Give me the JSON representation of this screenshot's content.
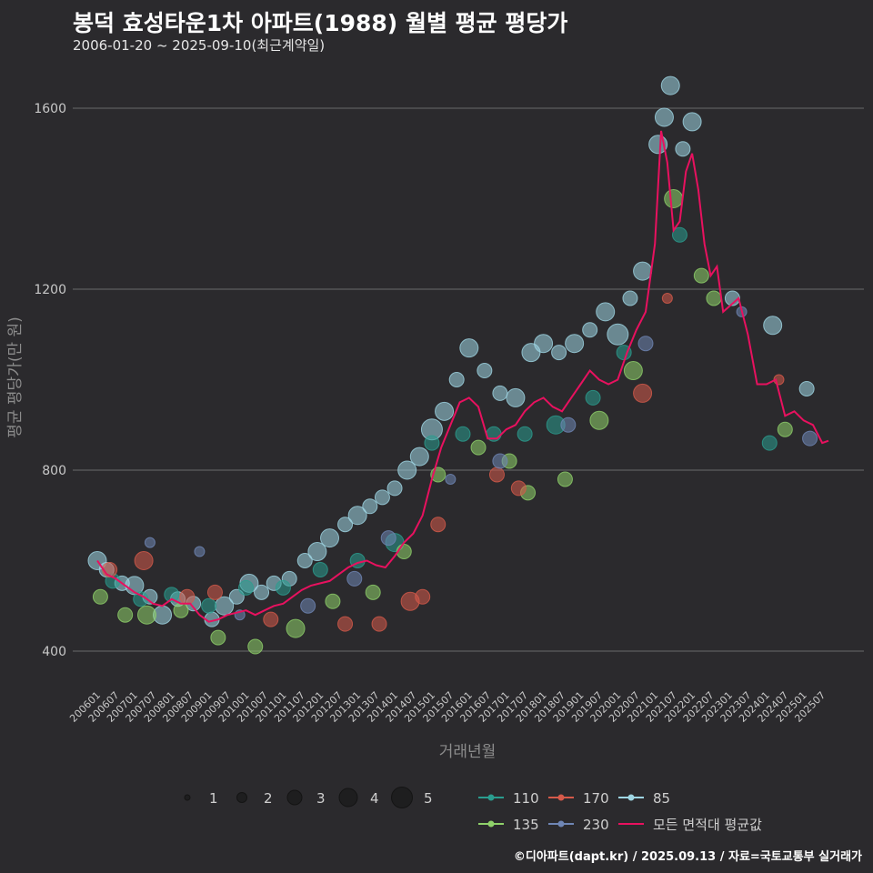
{
  "header": {
    "title": "봉덕 효성타운1차 아파트(1988) 월별 평균 평당가",
    "subtitle": "2006-01-20 ~ 2025-09-10(최근계약일)"
  },
  "footer": {
    "credit": "©디아파트(dapt.kr) / 2025.09.13 / 자료=국토교통부 실거래가"
  },
  "colors": {
    "background": "#2b2a2d",
    "grid": "#6a6a6a",
    "average_line": "#e8115f",
    "series": {
      "110": "#2a9d8f",
      "135": "#8fd16a",
      "170": "#d65a4a",
      "230": "#6f86b5",
      "85": "#9fd6e3"
    }
  },
  "chart_data": {
    "type": "scatter",
    "title": "봉덕 효성타운1차 아파트(1988) 월별 평균 평당가",
    "subtitle": "2006-01-20 ~ 2025-09-10(최근계약일)",
    "xlabel": "거래년월",
    "ylabel": "평균 평당가(만 원)",
    "ylim": [
      300,
      1720
    ],
    "yticks": [
      400,
      800,
      1200,
      1600
    ],
    "grid": true,
    "xrange": [
      "2006-01",
      "2025-09"
    ],
    "xticks": [
      "200601",
      "200607",
      "200701",
      "200707",
      "200801",
      "200807",
      "200901",
      "200907",
      "201001",
      "201007",
      "201101",
      "201107",
      "201201",
      "201207",
      "201301",
      "201307",
      "201401",
      "201407",
      "201501",
      "201507",
      "201601",
      "201607",
      "201701",
      "201707",
      "201801",
      "201807",
      "201901",
      "201907",
      "202001",
      "202007",
      "202101",
      "202107",
      "202201",
      "202207",
      "202301",
      "202307",
      "202401",
      "202407",
      "202501",
      "202507"
    ],
    "size_legend": {
      "title": "",
      "values": [
        "1",
        "2",
        "3",
        "4",
        "5"
      ]
    },
    "series_legend": [
      "110",
      "170",
      "85",
      "135",
      "230",
      "모든 면적대 평균값"
    ],
    "average_line": {
      "name": "모든 면적대 평균값",
      "points": [
        [
          "2006-01",
          600
        ],
        [
          "2006-04",
          570
        ],
        [
          "2006-07",
          560
        ],
        [
          "2006-10",
          545
        ],
        [
          "2007-01",
          530
        ],
        [
          "2007-04",
          520
        ],
        [
          "2007-07",
          505
        ],
        [
          "2007-10",
          500
        ],
        [
          "2008-01",
          515
        ],
        [
          "2008-04",
          505
        ],
        [
          "2008-07",
          505
        ],
        [
          "2008-10",
          480
        ],
        [
          "2009-01",
          465
        ],
        [
          "2009-04",
          470
        ],
        [
          "2009-07",
          480
        ],
        [
          "2009-10",
          485
        ],
        [
          "2010-01",
          490
        ],
        [
          "2010-04",
          480
        ],
        [
          "2010-07",
          490
        ],
        [
          "2010-10",
          500
        ],
        [
          "2011-01",
          505
        ],
        [
          "2011-04",
          520
        ],
        [
          "2011-07",
          535
        ],
        [
          "2011-10",
          545
        ],
        [
          "2012-01",
          550
        ],
        [
          "2012-04",
          555
        ],
        [
          "2012-07",
          570
        ],
        [
          "2012-10",
          585
        ],
        [
          "2013-01",
          595
        ],
        [
          "2013-04",
          600
        ],
        [
          "2013-07",
          590
        ],
        [
          "2013-10",
          585
        ],
        [
          "2014-01",
          610
        ],
        [
          "2014-04",
          640
        ],
        [
          "2014-07",
          660
        ],
        [
          "2014-10",
          700
        ],
        [
          "2015-01",
          780
        ],
        [
          "2015-04",
          850
        ],
        [
          "2015-07",
          900
        ],
        [
          "2015-10",
          950
        ],
        [
          "2016-01",
          960
        ],
        [
          "2016-04",
          940
        ],
        [
          "2016-07",
          870
        ],
        [
          "2016-10",
          870
        ],
        [
          "2017-01",
          890
        ],
        [
          "2017-04",
          900
        ],
        [
          "2017-07",
          930
        ],
        [
          "2017-10",
          950
        ],
        [
          "2018-01",
          960
        ],
        [
          "2018-04",
          940
        ],
        [
          "2018-07",
          930
        ],
        [
          "2018-10",
          960
        ],
        [
          "2019-01",
          990
        ],
        [
          "2019-04",
          1020
        ],
        [
          "2019-07",
          1000
        ],
        [
          "2019-10",
          990
        ],
        [
          "2020-01",
          1000
        ],
        [
          "2020-04",
          1060
        ],
        [
          "2020-07",
          1110
        ],
        [
          "2020-10",
          1150
        ],
        [
          "2021-01",
          1300
        ],
        [
          "2021-03",
          1550
        ],
        [
          "2021-05",
          1480
        ],
        [
          "2021-07",
          1330
        ],
        [
          "2021-09",
          1350
        ],
        [
          "2021-11",
          1460
        ],
        [
          "2022-01",
          1500
        ],
        [
          "2022-03",
          1420
        ],
        [
          "2022-05",
          1300
        ],
        [
          "2022-07",
          1230
        ],
        [
          "2022-09",
          1250
        ],
        [
          "2022-11",
          1150
        ],
        [
          "2023-04",
          1180
        ],
        [
          "2023-07",
          1100
        ],
        [
          "2023-10",
          990
        ],
        [
          "2024-01",
          990
        ],
        [
          "2024-04",
          1000
        ],
        [
          "2024-07",
          920
        ],
        [
          "2024-10",
          930
        ],
        [
          "2025-01",
          910
        ],
        [
          "2025-04",
          900
        ],
        [
          "2025-07",
          860
        ],
        [
          "2025-09",
          865
        ]
      ]
    },
    "series": [
      {
        "name": "85",
        "points": [
          [
            "2006-01",
            600,
            4
          ],
          [
            "2006-04",
            580,
            3
          ],
          [
            "2006-09",
            550,
            3
          ],
          [
            "2007-01",
            545,
            4
          ],
          [
            "2007-06",
            520,
            3
          ],
          [
            "2007-10",
            480,
            4
          ],
          [
            "2008-03",
            515,
            3
          ],
          [
            "2008-08",
            505,
            3
          ],
          [
            "2009-02",
            470,
            3
          ],
          [
            "2009-06",
            500,
            4
          ],
          [
            "2009-10",
            520,
            3
          ],
          [
            "2010-02",
            550,
            4
          ],
          [
            "2010-06",
            530,
            3
          ],
          [
            "2010-10",
            550,
            3
          ],
          [
            "2011-03",
            560,
            3
          ],
          [
            "2011-08",
            600,
            3
          ],
          [
            "2011-12",
            620,
            4
          ],
          [
            "2012-04",
            650,
            4
          ],
          [
            "2012-09",
            680,
            3
          ],
          [
            "2013-01",
            700,
            4
          ],
          [
            "2013-05",
            720,
            3
          ],
          [
            "2013-09",
            740,
            3
          ],
          [
            "2014-01",
            760,
            3
          ],
          [
            "2014-05",
            800,
            4
          ],
          [
            "2014-09",
            830,
            4
          ],
          [
            "2015-01",
            890,
            5
          ],
          [
            "2015-05",
            930,
            4
          ],
          [
            "2015-09",
            1000,
            3
          ],
          [
            "2016-01",
            1070,
            4
          ],
          [
            "2016-06",
            1020,
            3
          ],
          [
            "2016-11",
            970,
            3
          ],
          [
            "2017-04",
            960,
            4
          ],
          [
            "2017-09",
            1060,
            4
          ],
          [
            "2018-01",
            1080,
            4
          ],
          [
            "2018-06",
            1060,
            3
          ],
          [
            "2018-11",
            1080,
            4
          ],
          [
            "2019-04",
            1110,
            3
          ],
          [
            "2019-09",
            1150,
            4
          ],
          [
            "2020-01",
            1100,
            5
          ],
          [
            "2020-05",
            1180,
            3
          ],
          [
            "2020-09",
            1240,
            4
          ],
          [
            "2021-02",
            1520,
            4
          ],
          [
            "2021-04",
            1580,
            4
          ],
          [
            "2021-06",
            1650,
            4
          ],
          [
            "2021-10",
            1510,
            3
          ],
          [
            "2022-01",
            1570,
            4
          ],
          [
            "2023-02",
            1180,
            3
          ],
          [
            "2024-03",
            1120,
            4
          ],
          [
            "2025-02",
            980,
            3
          ]
        ]
      },
      {
        "name": "110",
        "points": [
          [
            "2006-06",
            555,
            3
          ],
          [
            "2007-03",
            515,
            3
          ],
          [
            "2008-01",
            525,
            3
          ],
          [
            "2009-01",
            500,
            3
          ],
          [
            "2010-01",
            540,
            3
          ],
          [
            "2011-01",
            540,
            3
          ],
          [
            "2012-01",
            580,
            3
          ],
          [
            "2013-01",
            600,
            3
          ],
          [
            "2014-01",
            640,
            4
          ],
          [
            "2015-01",
            860,
            3
          ],
          [
            "2015-11",
            880,
            3
          ],
          [
            "2016-09",
            880,
            3
          ],
          [
            "2017-07",
            880,
            3
          ],
          [
            "2018-05",
            900,
            4
          ],
          [
            "2019-05",
            960,
            3
          ],
          [
            "2020-03",
            1060,
            3
          ],
          [
            "2021-09",
            1320,
            3
          ],
          [
            "2024-02",
            860,
            3
          ]
        ]
      },
      {
        "name": "135",
        "points": [
          [
            "2006-02",
            520,
            3
          ],
          [
            "2006-10",
            480,
            3
          ],
          [
            "2007-05",
            480,
            4
          ],
          [
            "2008-04",
            490,
            3
          ],
          [
            "2009-04",
            430,
            3
          ],
          [
            "2010-04",
            410,
            3
          ],
          [
            "2011-05",
            450,
            4
          ],
          [
            "2012-05",
            510,
            3
          ],
          [
            "2013-06",
            530,
            3
          ],
          [
            "2014-04",
            620,
            3
          ],
          [
            "2015-03",
            790,
            3
          ],
          [
            "2016-04",
            850,
            3
          ],
          [
            "2017-02",
            820,
            3
          ],
          [
            "2017-08",
            750,
            3
          ],
          [
            "2018-08",
            780,
            3
          ],
          [
            "2019-07",
            910,
            4
          ],
          [
            "2020-06",
            1020,
            4
          ],
          [
            "2021-07",
            1400,
            4
          ],
          [
            "2022-04",
            1230,
            3
          ],
          [
            "2022-08",
            1180,
            3
          ],
          [
            "2024-07",
            890,
            3
          ]
        ]
      },
      {
        "name": "170",
        "points": [
          [
            "2006-05",
            580,
            3
          ],
          [
            "2007-04",
            600,
            4
          ],
          [
            "2008-06",
            520,
            3
          ],
          [
            "2009-03",
            530,
            3
          ],
          [
            "2010-09",
            470,
            3
          ],
          [
            "2012-09",
            460,
            3
          ],
          [
            "2013-08",
            460,
            3
          ],
          [
            "2014-06",
            510,
            4
          ],
          [
            "2014-10",
            520,
            3
          ],
          [
            "2015-03",
            680,
            3
          ],
          [
            "2016-10",
            790,
            3
          ],
          [
            "2017-05",
            760,
            3
          ],
          [
            "2020-09",
            970,
            4
          ],
          [
            "2021-05",
            1180,
            2
          ],
          [
            "2024-05",
            1000,
            2
          ]
        ]
      },
      {
        "name": "230",
        "points": [
          [
            "2007-06",
            640,
            2
          ],
          [
            "2008-10",
            620,
            2
          ],
          [
            "2009-11",
            480,
            2
          ],
          [
            "2011-09",
            500,
            3
          ],
          [
            "2012-12",
            560,
            3
          ],
          [
            "2013-11",
            650,
            3
          ],
          [
            "2015-07",
            780,
            2
          ],
          [
            "2016-11",
            820,
            3
          ],
          [
            "2018-09",
            900,
            3
          ],
          [
            "2020-10",
            1080,
            3
          ],
          [
            "2023-05",
            1150,
            2
          ],
          [
            "2025-03",
            870,
            3
          ]
        ]
      }
    ]
  }
}
